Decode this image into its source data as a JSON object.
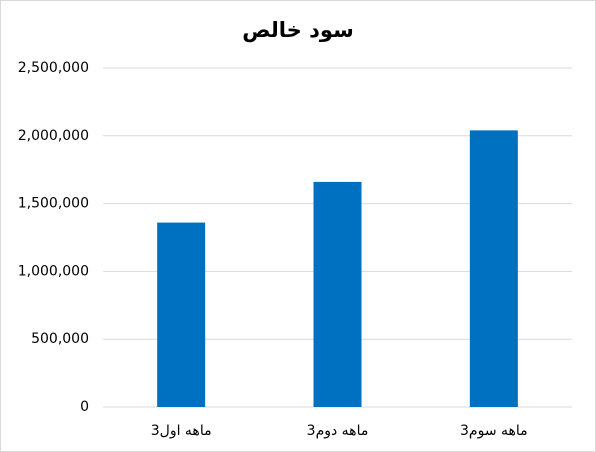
{
  "chart_data": {
    "type": "bar",
    "title": "سود خالص",
    "categories": [
      "3ماهه اول",
      "3ماهه دوم",
      "3ماهه سوم"
    ],
    "values": [
      1360000,
      1660000,
      2040000
    ],
    "color": "#0070c0",
    "ylim": [
      0,
      2500000
    ],
    "yticks": [
      0,
      {
        "value": 500000,
        "label": "500,000"
      },
      {
        "value": 1000000,
        "label": "1,000,000"
      },
      {
        "value": 1500000,
        "label": "1,500,000"
      },
      {
        "value": 2000000,
        "label": "2,000,000"
      },
      {
        "value": 2500000,
        "label": "2,500,000"
      }
    ],
    "grid": true
  }
}
